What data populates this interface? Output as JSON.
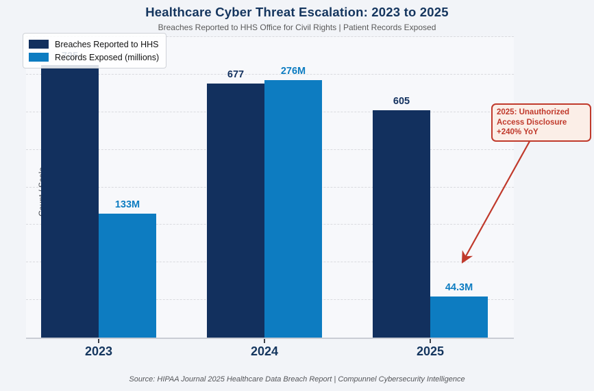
{
  "title": "Healthcare Cyber Threat Escalation: 2023 to 2025",
  "subtitle": "Breaches Reported to HHS Office for Civil Rights  |  Patient Records Exposed",
  "ylabel": "Count / Scale",
  "source": "Source: HIPAA Journal 2025 Healthcare Data Breach Report  |  Compunnel Cybersecurity Intelligence",
  "colors": {
    "breaches_bar": "#12305e",
    "records_bar": "#0d7cc1",
    "title_text": "#14355e",
    "annotation_red": "#c0392b",
    "background": "#f2f4f8"
  },
  "legend": {
    "items": [
      {
        "label": "Breaches Reported to HHS",
        "color": "#12305e"
      },
      {
        "label": "Records Exposed (millions)",
        "color": "#0d7cc1"
      }
    ]
  },
  "annotation": {
    "lines": [
      "2025: Unauthorized",
      "Access Disclosure",
      "+240% YoY"
    ]
  },
  "chart_data": {
    "type": "bar",
    "title": "Healthcare Cyber Threat Escalation: 2023 to 2025",
    "subtitle": "Breaches Reported to HHS Office for Civil Rights | Patient Records Exposed",
    "categories": [
      "2023",
      "2024",
      "2025"
    ],
    "series": [
      {
        "name": "Breaches Reported to HHS",
        "values": [
          725,
          677,
          605
        ],
        "labels": [
          "725",
          "677",
          "605"
        ],
        "color": "#12305e",
        "label_color": "#12305e"
      },
      {
        "name": "Records Exposed (millions)",
        "values": [
          133,
          276,
          44.3
        ],
        "labels": [
          "133M",
          "276M",
          "44.3M"
        ],
        "color": "#0d7cc1",
        "label_color": "#0d7cc1"
      }
    ],
    "xlabel": "",
    "ylabel": "Count / Scale",
    "ylim": [
      0,
      800
    ],
    "gridline_step": 100,
    "records_units_per_million": 2.48,
    "grid": "horizontal dashed",
    "legend_position": "upper left",
    "annotation": {
      "text": "2025: Unauthorized Access Disclosure +240% YoY",
      "points_to": "2025 Records Exposed bar (44.3M)"
    }
  }
}
